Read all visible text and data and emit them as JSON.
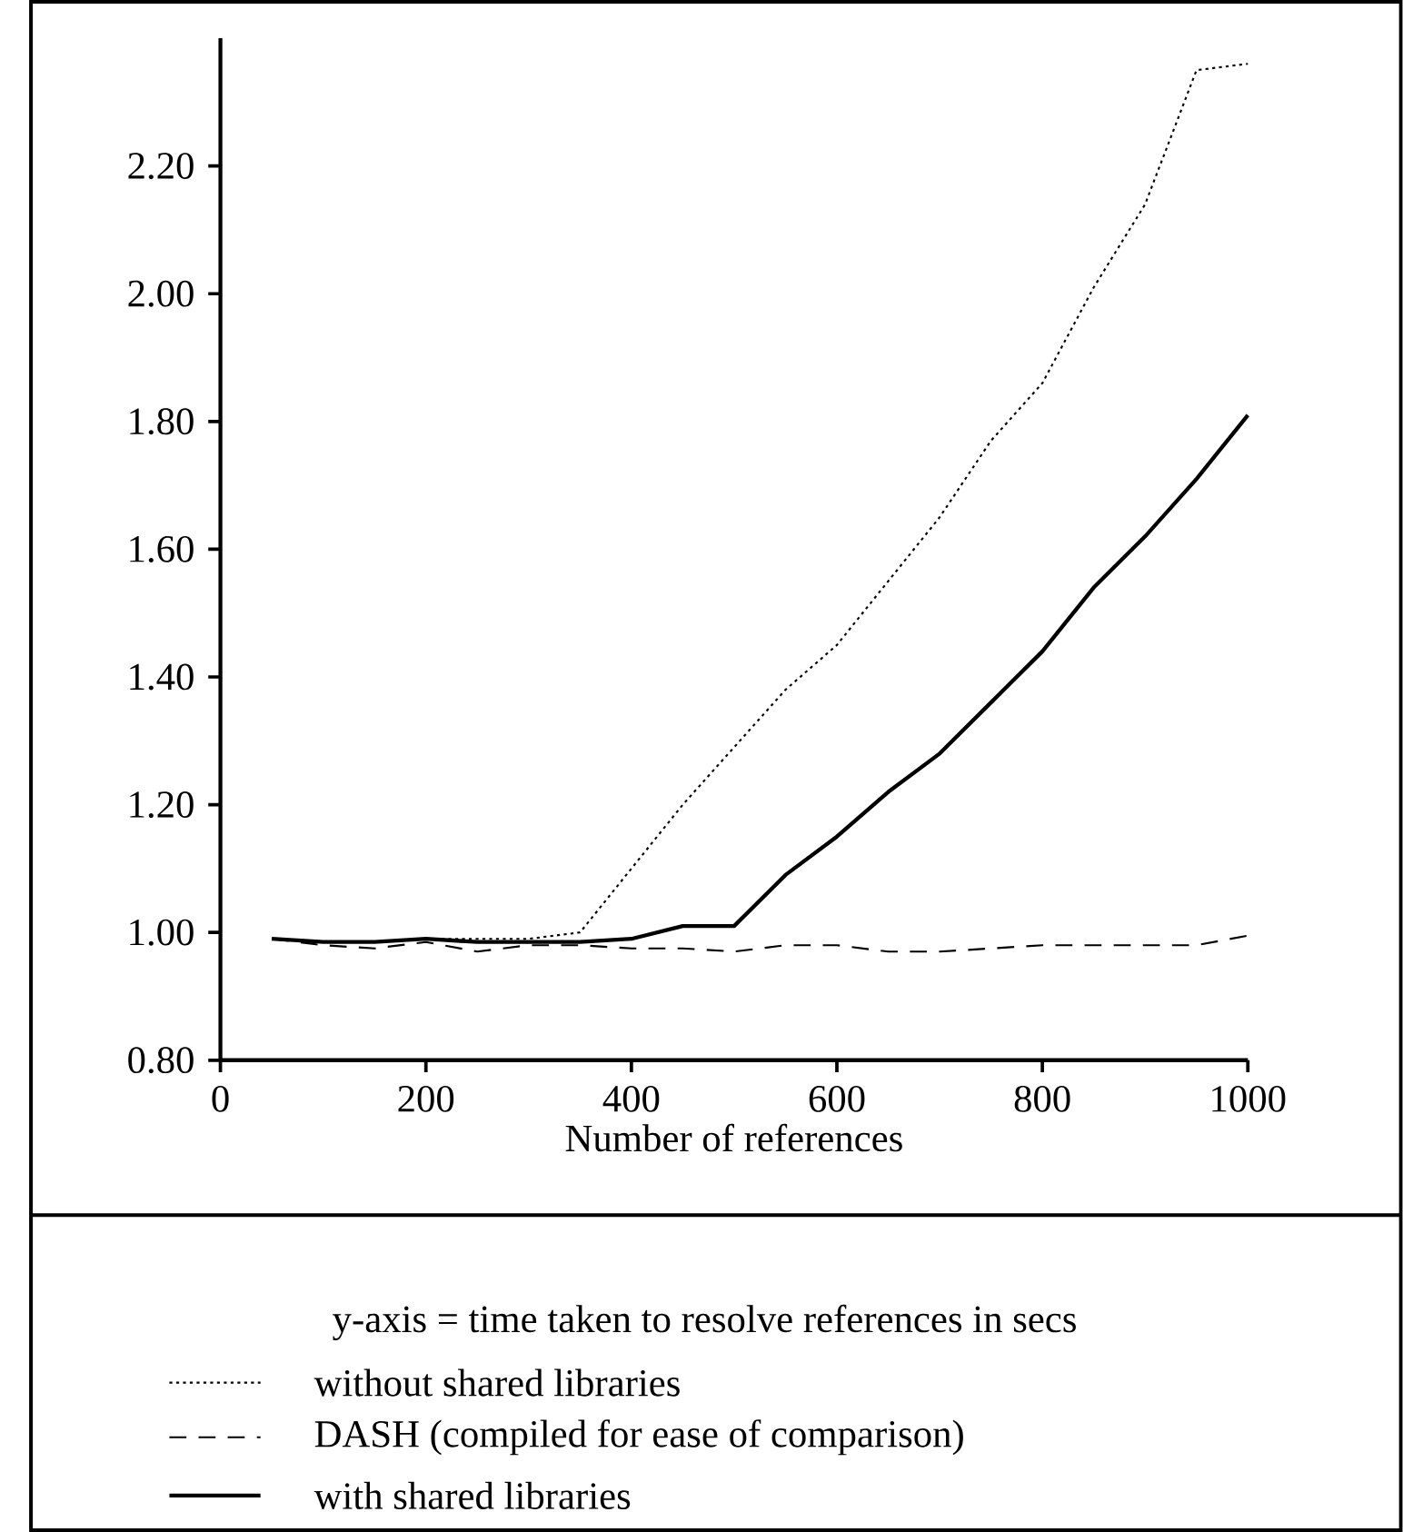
{
  "chart_data": {
    "type": "line",
    "xlabel": "Number of references",
    "annotations": [
      "y-axis = time taken to resolve references in secs"
    ],
    "x": [
      50,
      100,
      150,
      200,
      250,
      300,
      350,
      400,
      450,
      500,
      550,
      600,
      650,
      700,
      750,
      800,
      850,
      900,
      950,
      1000
    ],
    "xlim": [
      0,
      1000
    ],
    "ylim": [
      0.8,
      2.4
    ],
    "xticks": [
      0,
      200,
      400,
      600,
      800,
      1000
    ],
    "yticks": [
      {
        "value": 0.8,
        "label": "0.80"
      },
      {
        "value": 1.0,
        "label": "1.00"
      },
      {
        "value": 1.2,
        "label": "1.20"
      },
      {
        "value": 1.4,
        "label": "1.40"
      },
      {
        "value": 1.6,
        "label": "1.60"
      },
      {
        "value": 1.8,
        "label": "1.80"
      },
      {
        "value": 2.0,
        "label": "2.00"
      },
      {
        "value": 2.2,
        "label": "2.20"
      }
    ],
    "legend": "bottom",
    "marker": "none",
    "series": [
      {
        "name": "without shared libraries",
        "color": "#000000",
        "line_style": "dotted",
        "values": [
          0.99,
          0.985,
          0.985,
          0.99,
          0.99,
          0.99,
          1.0,
          1.1,
          1.2,
          1.29,
          1.38,
          1.45,
          1.55,
          1.65,
          1.77,
          1.86,
          2.01,
          2.14,
          2.35,
          2.36
        ]
      },
      {
        "name": "DASH (compiled for ease of comparison)",
        "color": "#000000",
        "line_style": "dashed",
        "values": [
          0.99,
          0.98,
          0.975,
          0.985,
          0.97,
          0.98,
          0.98,
          0.975,
          0.975,
          0.97,
          0.98,
          0.98,
          0.97,
          0.97,
          0.975,
          0.98,
          0.98,
          0.98,
          0.98,
          0.995
        ]
      },
      {
        "name": "with shared libraries",
        "color": "#000000",
        "line_style": "solid",
        "values": [
          0.99,
          0.985,
          0.985,
          0.99,
          0.985,
          0.985,
          0.985,
          0.99,
          1.01,
          1.01,
          1.09,
          1.15,
          1.22,
          1.28,
          1.36,
          1.44,
          1.54,
          1.62,
          1.71,
          1.81
        ]
      }
    ]
  }
}
